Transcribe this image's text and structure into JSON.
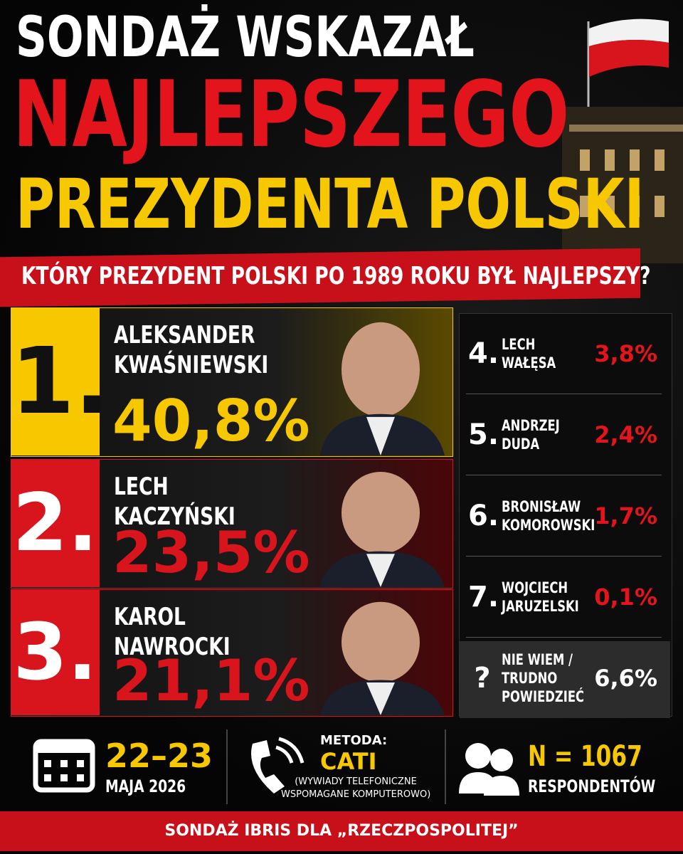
{
  "header": {
    "line1": "SONDAŻ WSKAZAŁ",
    "line2": "NAJLEPSZEGO",
    "line3": "PREZYDENTA POLSKI"
  },
  "question": "KTÓRY PREZYDENT POLSKI PO 1989 ROKU BYŁ NAJLEPSZY?",
  "top": [
    {
      "rank": "1.",
      "name": [
        "ALEKSANDER",
        "KWAŚNIEWSKI"
      ],
      "percent": "40,8%"
    },
    {
      "rank": "2.",
      "name": [
        "LECH",
        "KACZYŃSKI"
      ],
      "percent": "23,5%"
    },
    {
      "rank": "3.",
      "name": [
        "KAROL",
        "NAWROCKI"
      ],
      "percent": "21,1%"
    }
  ],
  "others": [
    {
      "rank": "4.",
      "name": [
        "LECH",
        "WAŁĘSA"
      ],
      "percent": "3,8%"
    },
    {
      "rank": "5.",
      "name": [
        "ANDRZEJ",
        "DUDA"
      ],
      "percent": "2,4%"
    },
    {
      "rank": "6.",
      "name": [
        "BRONISŁAW",
        "KOMOROWSKI"
      ],
      "percent": "1,7%"
    },
    {
      "rank": "7.",
      "name": [
        "WOJCIECH",
        "JARUZELSKI"
      ],
      "percent": "0,1%"
    },
    {
      "rank": "?",
      "name": [
        "NIE WIEM /",
        "TRUDNO",
        "POWIEDZIEĆ"
      ],
      "percent": "6,6%"
    }
  ],
  "footer": {
    "date": "22–23",
    "date_sub": "MAJA 2026",
    "method_label": "METODA:",
    "method": "CATI",
    "method_note": [
      "(WYWIADY TELEFONICZNE",
      "WSPOMAGANE KOMPUTEROWO)"
    ],
    "sample": "N = 1067",
    "sample_sub": "RESPONDENTÓW"
  },
  "source": "SONDAŻ IBRIS DLA „RZECZPOSPOLITEJ”"
}
